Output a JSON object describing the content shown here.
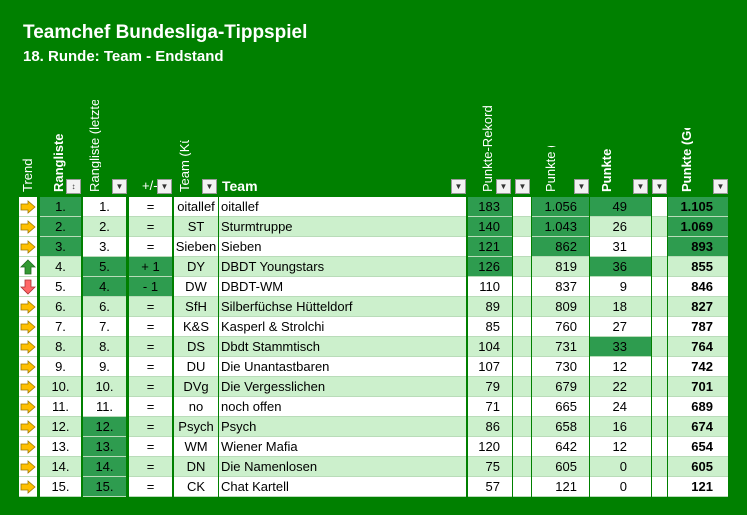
{
  "page": {
    "title": "Teamchef Bundesliga-Tippspiel",
    "subtitle": "18. Runde: Team - Endstand"
  },
  "headers": {
    "trend": "Trend",
    "rangliste": "Rangliste",
    "rangliste_prev": "Rangliste (letzte Runde)",
    "diff": "+/-",
    "team_short": "Team (Kürzel)",
    "team": "Team",
    "rekord": "Punkte-Rekord",
    "punkte_bisher": "Punkte (bisher)",
    "punkte_neu": "Punkte (neu)",
    "punkte_gesamt": "Punkte (Gesamt)"
  },
  "colors": {
    "background": "#008000",
    "highlight": "#2e9c4f",
    "light_row": "#ccf0cc",
    "trend_same": "#ffc000",
    "trend_up": "#339933",
    "trend_down": "#ff6666"
  },
  "rows": [
    {
      "trend": "same",
      "rank": "1.",
      "prev": "1.",
      "diff": "=",
      "short": "oitallef",
      "team": "oitallef",
      "rekord": "183",
      "bisher": "1.056",
      "neu": "49",
      "gesamt": "1.105"
    },
    {
      "trend": "same",
      "rank": "2.",
      "prev": "2.",
      "diff": "=",
      "short": "ST",
      "team": "Sturmtruppe",
      "rekord": "140",
      "bisher": "1.043",
      "neu": "26",
      "gesamt": "1.069"
    },
    {
      "trend": "same",
      "rank": "3.",
      "prev": "3.",
      "diff": "=",
      "short": "Sieben",
      "team": "Sieben",
      "rekord": "121",
      "bisher": "862",
      "neu": "31",
      "gesamt": "893"
    },
    {
      "trend": "up",
      "rank": "4.",
      "prev": "5.",
      "diff": "+ 1",
      "short": "DY",
      "team": "DBDT Youngstars",
      "rekord": "126",
      "bisher": "819",
      "neu": "36",
      "gesamt": "855"
    },
    {
      "trend": "down",
      "rank": "5.",
      "prev": "4.",
      "diff": "- 1",
      "short": "DW",
      "team": "DBDT-WM",
      "rekord": "110",
      "bisher": "837",
      "neu": "9",
      "gesamt": "846"
    },
    {
      "trend": "same",
      "rank": "6.",
      "prev": "6.",
      "diff": "=",
      "short": "SfH",
      "team": "Silberfüchse Hütteldorf",
      "rekord": "89",
      "bisher": "809",
      "neu": "18",
      "gesamt": "827"
    },
    {
      "trend": "same",
      "rank": "7.",
      "prev": "7.",
      "diff": "=",
      "short": "K&S",
      "team": "Kasperl & Strolchi",
      "rekord": "85",
      "bisher": "760",
      "neu": "27",
      "gesamt": "787"
    },
    {
      "trend": "same",
      "rank": "8.",
      "prev": "8.",
      "diff": "=",
      "short": "DS",
      "team": "Dbdt Stammtisch",
      "rekord": "104",
      "bisher": "731",
      "neu": "33",
      "gesamt": "764"
    },
    {
      "trend": "same",
      "rank": "9.",
      "prev": "9.",
      "diff": "=",
      "short": "DU",
      "team": "Die Unantastbaren",
      "rekord": "107",
      "bisher": "730",
      "neu": "12",
      "gesamt": "742"
    },
    {
      "trend": "same",
      "rank": "10.",
      "prev": "10.",
      "diff": "=",
      "short": "DVg",
      "team": "Die Vergesslichen",
      "rekord": "79",
      "bisher": "679",
      "neu": "22",
      "gesamt": "701"
    },
    {
      "trend": "same",
      "rank": "11.",
      "prev": "11.",
      "diff": "=",
      "short": "no",
      "team": "noch offen",
      "rekord": "71",
      "bisher": "665",
      "neu": "24",
      "gesamt": "689"
    },
    {
      "trend": "same",
      "rank": "12.",
      "prev": "12.",
      "diff": "=",
      "short": "Psych",
      "team": "Psych",
      "rekord": "86",
      "bisher": "658",
      "neu": "16",
      "gesamt": "674"
    },
    {
      "trend": "same",
      "rank": "13.",
      "prev": "13.",
      "diff": "=",
      "short": "WM",
      "team": "Wiener Mafia",
      "rekord": "120",
      "bisher": "642",
      "neu": "12",
      "gesamt": "654"
    },
    {
      "trend": "same",
      "rank": "14.",
      "prev": "14.",
      "diff": "=",
      "short": "DN",
      "team": "Die Namenlosen",
      "rekord": "75",
      "bisher": "605",
      "neu": "0",
      "gesamt": "605"
    },
    {
      "trend": "same",
      "rank": "15.",
      "prev": "15.",
      "diff": "=",
      "short": "CK",
      "team": "Chat Kartell",
      "rekord": "57",
      "bisher": "121",
      "neu": "0",
      "gesamt": "121"
    }
  ]
}
